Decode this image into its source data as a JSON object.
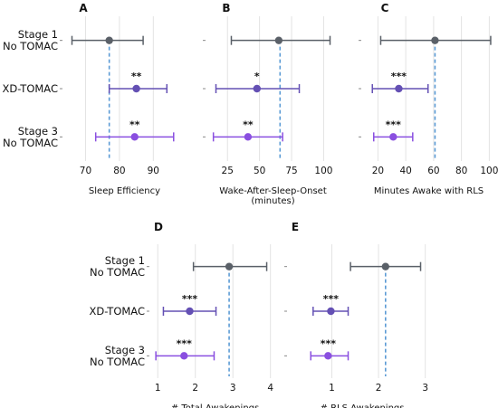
{
  "colors": {
    "stage1": "#5a6068",
    "xd": "#6450b4",
    "stage3": "#8a4fe0",
    "reference": "#5b9bd5",
    "grid": "#e3e3e3",
    "tick": "#888888"
  },
  "chart_data": [
    {
      "type": "scatter",
      "panel_label": "A",
      "xlabel": "Sleep Efficiency",
      "xlim": [
        64,
        99
      ],
      "xticks": [
        70,
        80,
        90
      ],
      "reference_line": 77,
      "grid": true,
      "show_group_labels": true,
      "groups": [
        {
          "label": [
            "Stage 1",
            "No TOMAC"
          ],
          "mean": 77,
          "ci": [
            66,
            87
          ],
          "sig": "",
          "color_key": "stage1"
        },
        {
          "label": [
            "XD-TOMAC"
          ],
          "mean": 85,
          "ci": [
            77,
            94
          ],
          "sig": "**",
          "color_key": "xd"
        },
        {
          "label": [
            "Stage 3",
            "No TOMAC"
          ],
          "mean": 84.5,
          "ci": [
            73,
            96
          ],
          "sig": "**",
          "color_key": "stage3"
        }
      ]
    },
    {
      "type": "scatter",
      "panel_label": "B",
      "xlabel": [
        "Wake-After-Sleep-Onset",
        "(minutes)"
      ],
      "xlim": [
        10,
        111
      ],
      "xticks": [
        25,
        50,
        75,
        100
      ],
      "reference_line": 66,
      "grid": true,
      "show_group_labels": false,
      "groups": [
        {
          "label": [
            "Stage 1",
            "No TOMAC"
          ],
          "mean": 65,
          "ci": [
            28,
            105
          ],
          "sig": "",
          "color_key": "stage1"
        },
        {
          "label": [
            "XD-TOMAC"
          ],
          "mean": 48,
          "ci": [
            16,
            81
          ],
          "sig": "*",
          "color_key": "xd"
        },
        {
          "label": [
            "Stage 3",
            "No TOMAC"
          ],
          "mean": 41,
          "ci": [
            14,
            68
          ],
          "sig": "**",
          "color_key": "stage3"
        }
      ]
    },
    {
      "type": "scatter",
      "panel_label": "C",
      "xlabel": "Minutes Awake with RLS",
      "xlim": [
        10,
        103
      ],
      "xticks": [
        20,
        40,
        60,
        80,
        100
      ],
      "reference_line": 61,
      "grid": true,
      "show_group_labels": false,
      "groups": [
        {
          "label": [
            "Stage 1",
            "No TOMAC"
          ],
          "mean": 61,
          "ci": [
            22,
            101
          ],
          "sig": "",
          "color_key": "stage1"
        },
        {
          "label": [
            "XD-TOMAC"
          ],
          "mean": 35,
          "ci": [
            16,
            56
          ],
          "sig": "***",
          "color_key": "xd"
        },
        {
          "label": [
            "Stage 3",
            "No TOMAC"
          ],
          "mean": 31,
          "ci": [
            17,
            45
          ],
          "sig": "***",
          "color_key": "stage3"
        }
      ]
    },
    {
      "type": "scatter",
      "panel_label": "D",
      "xlabel": "# Total Awakenings",
      "xlim": [
        0.85,
        4.2
      ],
      "xticks": [
        1,
        2,
        3,
        4
      ],
      "reference_line": 2.9,
      "grid": true,
      "show_group_labels": true,
      "groups": [
        {
          "label": [
            "Stage 1",
            "No TOMAC"
          ],
          "mean": 2.9,
          "ci": [
            1.95,
            3.9
          ],
          "sig": "",
          "color_key": "stage1"
        },
        {
          "label": [
            "XD-TOMAC"
          ],
          "mean": 1.85,
          "ci": [
            1.15,
            2.55
          ],
          "sig": "***",
          "color_key": "xd"
        },
        {
          "label": [
            "Stage 3",
            "No TOMAC"
          ],
          "mean": 1.7,
          "ci": [
            0.95,
            2.5
          ],
          "sig": "***",
          "color_key": "stage3"
        }
      ]
    },
    {
      "type": "scatter",
      "panel_label": "E",
      "xlabel": "# RLS Awakenings",
      "xlim": [
        0.1,
        3.2
      ],
      "xticks": [
        1,
        2,
        3
      ],
      "reference_line": 2.15,
      "grid": true,
      "show_group_labels": false,
      "groups": [
        {
          "label": [
            "Stage 1",
            "No TOMAC"
          ],
          "mean": 2.15,
          "ci": [
            1.4,
            2.9
          ],
          "sig": "",
          "color_key": "stage1"
        },
        {
          "label": [
            "XD-TOMAC"
          ],
          "mean": 0.98,
          "ci": [
            0.6,
            1.35
          ],
          "sig": "***",
          "color_key": "xd"
        },
        {
          "label": [
            "Stage 3",
            "No TOMAC"
          ],
          "mean": 0.92,
          "ci": [
            0.55,
            1.35
          ],
          "sig": "***",
          "color_key": "stage3"
        }
      ]
    }
  ]
}
